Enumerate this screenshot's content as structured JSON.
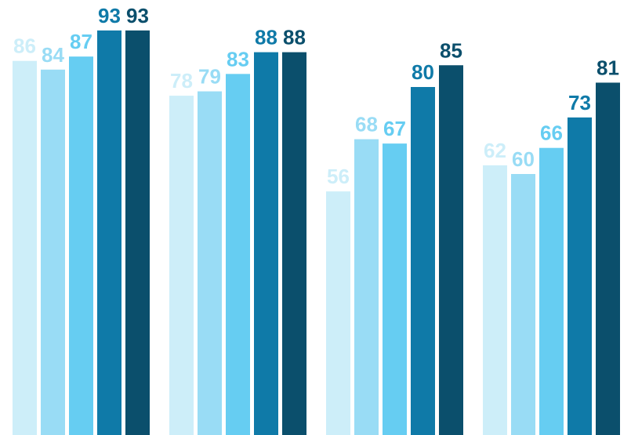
{
  "chart_data": {
    "type": "bar",
    "categories": [
      "",
      "",
      "",
      ""
    ],
    "series": [
      {
        "values": [
          86,
          78,
          56,
          62
        ],
        "color": "#cdeef9"
      },
      {
        "values": [
          84,
          79,
          68,
          60
        ],
        "color": "#99dcf5"
      },
      {
        "values": [
          87,
          83,
          67,
          66
        ],
        "color": "#66cdf2"
      },
      {
        "values": [
          93,
          88,
          80,
          73
        ],
        "color": "#0f7aa8"
      },
      {
        "values": [
          93,
          88,
          85,
          81
        ],
        "color": "#0b4f6c"
      }
    ],
    "data_labels": true,
    "title": "",
    "xlabel": "",
    "ylabel": "",
    "ylim": [
      0,
      100
    ],
    "grid": false,
    "legend": "none"
  }
}
